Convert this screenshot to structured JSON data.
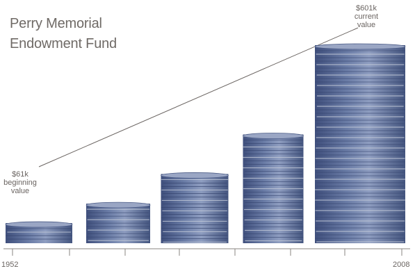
{
  "chart_data": {
    "type": "bar",
    "title_lines": [
      "Perry Memorial",
      "Endowment Fund"
    ],
    "unit": "$k",
    "categories": [
      "1952",
      "",
      "",
      "",
      "2008"
    ],
    "values": [
      61,
      120,
      210,
      330,
      601
    ],
    "x_range": [
      "1952",
      "2008"
    ],
    "grid": false,
    "bar_style": "stacked coins",
    "bar_color": "#5b6d96",
    "trend_line": {
      "from_value": 61,
      "to_value": 601
    },
    "annotations": {
      "start": [
        "$61k",
        "beginning",
        "value"
      ],
      "end": [
        "$601k",
        "current",
        "value"
      ]
    }
  },
  "colors": {
    "text": "#6f6a66",
    "axis": "#8a8580",
    "coin_dark": "#3f4f7c",
    "coin_light": "#c6ccda"
  }
}
